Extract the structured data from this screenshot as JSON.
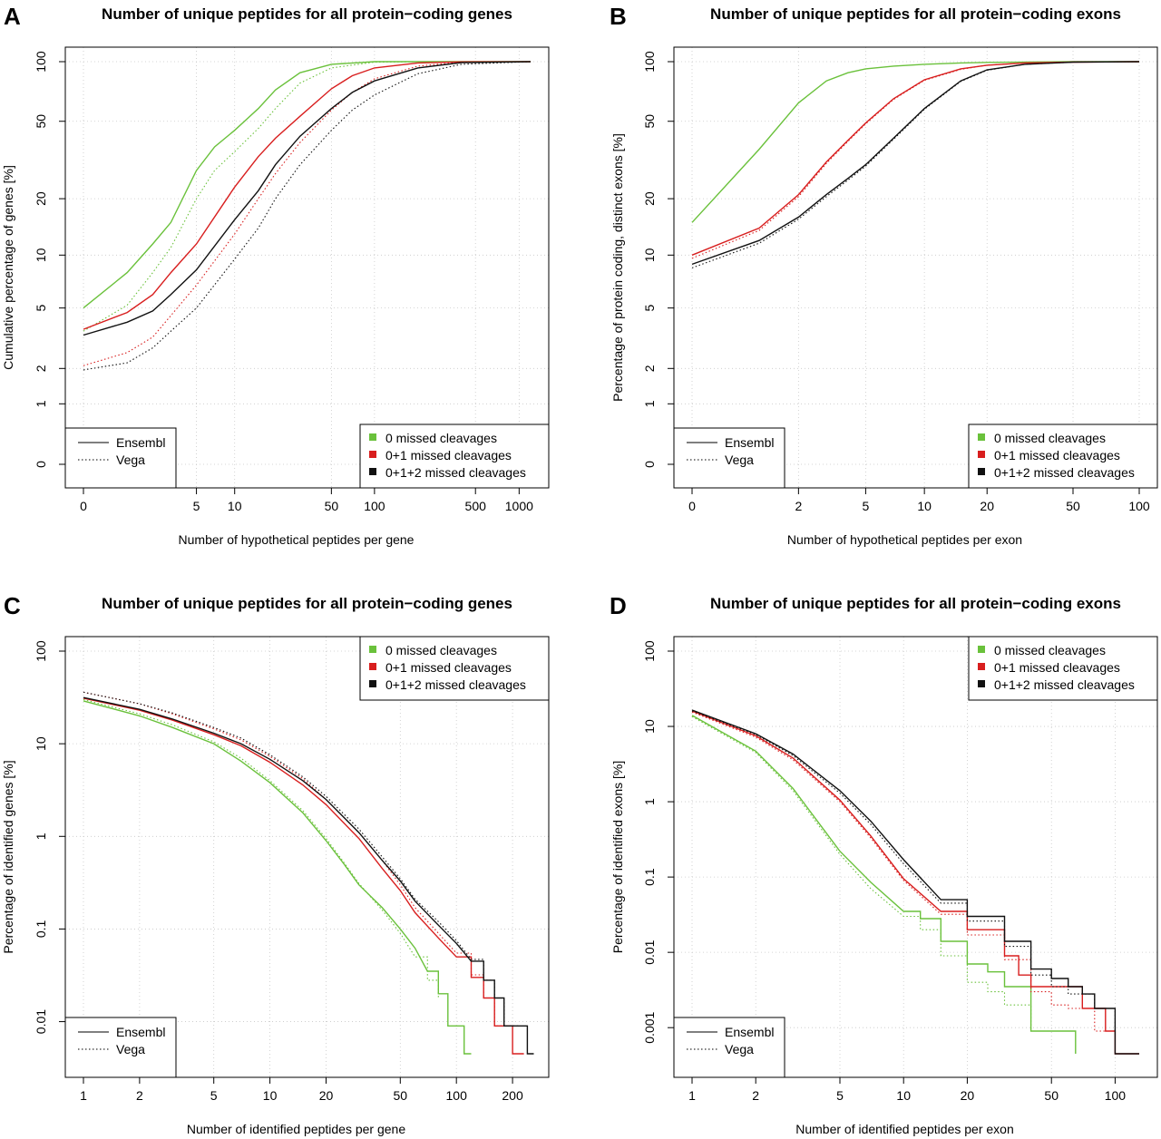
{
  "colors": {
    "green": "#6ac13b",
    "red": "#d81e1e",
    "black": "#111111",
    "grid": "#c8c8c8"
  },
  "legend_labels": {
    "source": [
      "Ensembl",
      "Vega"
    ],
    "cleavage": [
      "0 missed cleavages",
      "0+1 missed cleavages",
      "0+1+2 missed cleavages"
    ]
  },
  "chart_data": [
    {
      "letter": "A",
      "type": "line",
      "title": "Number of unique peptides for all protein−coding genes",
      "xlabel": "Number of hypothetical peptides per gene",
      "ylabel": "Cumulative percentage of genes [%]",
      "x_scale": "log(x+1)",
      "y_scale": "log(y+1)",
      "xlim": [
        0,
        1200
      ],
      "ylim": [
        0,
        100
      ],
      "x_ticks": [
        0,
        5,
        10,
        50,
        100,
        500,
        1000
      ],
      "y_ticks": [
        0,
        1,
        2,
        5,
        10,
        20,
        50,
        100
      ],
      "grid": true,
      "legends": {
        "source": "bottom-left",
        "cleavage": "bottom-right"
      },
      "series": [
        {
          "name": "Ensembl",
          "cleavage": "0 missed cleavages",
          "color": "green",
          "style": "solid",
          "x": [
            0,
            1,
            2,
            3,
            5,
            7,
            10,
            15,
            20,
            30,
            50,
            100,
            200,
            1200
          ],
          "y": [
            5,
            8,
            11.5,
            15,
            28,
            37,
            45,
            58,
            72,
            88,
            97,
            100,
            100,
            100
          ]
        },
        {
          "name": "Vega",
          "cleavage": "0 missed cleavages",
          "color": "green",
          "style": "dotted",
          "x": [
            0,
            1,
            2,
            3,
            5,
            7,
            10,
            15,
            20,
            30,
            50,
            100,
            200,
            1200
          ],
          "y": [
            3.6,
            5.2,
            8,
            11,
            20,
            28,
            35,
            46,
            58,
            78,
            93,
            99.5,
            100,
            100
          ]
        },
        {
          "name": "Ensembl",
          "cleavage": "0+1 missed cleavages",
          "color": "red",
          "style": "solid",
          "x": [
            0,
            1,
            2,
            3,
            5,
            10,
            15,
            20,
            30,
            50,
            70,
            100,
            200,
            400,
            1200
          ],
          "y": [
            3.7,
            4.7,
            6,
            8,
            11.5,
            23,
            33,
            41,
            53,
            73,
            85,
            93,
            98.5,
            99.8,
            100
          ]
        },
        {
          "name": "Vega",
          "cleavage": "0+1 missed cleavages",
          "color": "red",
          "style": "dotted",
          "x": [
            0,
            1,
            2,
            3,
            5,
            10,
            15,
            20,
            30,
            50,
            70,
            100,
            200,
            400,
            1200
          ],
          "y": [
            2.1,
            2.6,
            3.3,
            4.5,
            6.8,
            13,
            20,
            27,
            39,
            57,
            70,
            82,
            95,
            99.5,
            100
          ]
        },
        {
          "name": "Ensembl",
          "cleavage": "0+1+2 missed cleavages",
          "color": "black",
          "style": "solid",
          "x": [
            0,
            1,
            2,
            3,
            5,
            10,
            15,
            20,
            30,
            50,
            70,
            100,
            200,
            400,
            1200
          ],
          "y": [
            3.4,
            4.1,
            4.8,
            6,
            8.3,
            15.5,
            22,
            30,
            42,
            58,
            70,
            80,
            93,
            99,
            100
          ]
        },
        {
          "name": "Vega",
          "cleavage": "0+1+2 missed cleavages",
          "color": "black",
          "style": "dotted",
          "x": [
            0,
            1,
            2,
            3,
            5,
            10,
            15,
            20,
            30,
            50,
            70,
            100,
            200,
            400,
            1200
          ],
          "y": [
            1.95,
            2.2,
            2.8,
            3.6,
            5,
            9.5,
            14,
            20,
            30,
            45,
            57,
            68,
            87,
            97,
            100
          ]
        }
      ]
    },
    {
      "letter": "B",
      "type": "line",
      "title": "Number of unique peptides for all protein−coding exons",
      "xlabel": "Number of hypothetical peptides per exon",
      "ylabel": "Percentage of protein coding, distinct exons [%]",
      "x_scale": "log(x+1)",
      "y_scale": "log(y+1)",
      "xlim": [
        0,
        100
      ],
      "ylim": [
        0,
        100
      ],
      "x_ticks": [
        0,
        2,
        5,
        10,
        20,
        50,
        100
      ],
      "y_ticks": [
        0,
        1,
        2,
        5,
        10,
        20,
        50,
        100
      ],
      "grid": true,
      "legends": {
        "source": "bottom-left",
        "cleavage": "bottom-right"
      },
      "series": [
        {
          "name": "Ensembl",
          "cleavage": "0 missed cleavages",
          "color": "green",
          "style": "solid",
          "x": [
            0,
            1,
            2,
            3,
            4,
            5,
            7,
            10,
            15,
            20,
            50,
            100
          ],
          "y": [
            15,
            36,
            62,
            80,
            88,
            92,
            95,
            97,
            98.5,
            99.2,
            100,
            100
          ]
        },
        {
          "name": "Ensembl",
          "cleavage": "0+1 missed cleavages",
          "color": "red",
          "style": "solid",
          "x": [
            0,
            1,
            2,
            3,
            4,
            5,
            7,
            10,
            15,
            20,
            30,
            50,
            100
          ],
          "y": [
            10,
            14,
            21,
            31,
            40,
            49,
            65,
            81,
            92,
            96,
            98.5,
            99.5,
            100
          ]
        },
        {
          "name": "Vega",
          "cleavage": "0+1 missed cleavages",
          "color": "red",
          "style": "dotted",
          "x": [
            0,
            1,
            2,
            3,
            4,
            5,
            7,
            10,
            15,
            20,
            30,
            50,
            100
          ],
          "y": [
            9.6,
            13.6,
            20.5,
            30.5,
            39.5,
            48.5,
            64.5,
            80.5,
            91.5,
            96,
            98.5,
            99.5,
            100
          ]
        },
        {
          "name": "Ensembl",
          "cleavage": "0+1+2 missed cleavages",
          "color": "black",
          "style": "solid",
          "x": [
            0,
            1,
            2,
            3,
            4,
            5,
            7,
            10,
            15,
            20,
            30,
            50,
            100
          ],
          "y": [
            8.9,
            12,
            16,
            21,
            25.5,
            30,
            41,
            58,
            80,
            91,
            97,
            99.5,
            100
          ]
        },
        {
          "name": "Vega",
          "cleavage": "0+1+2 missed cleavages",
          "color": "black",
          "style": "dotted",
          "x": [
            0,
            1,
            2,
            3,
            4,
            5,
            7,
            10,
            15,
            20,
            30,
            50,
            100
          ],
          "y": [
            8.5,
            11.6,
            15.6,
            20.5,
            25,
            29.5,
            40.5,
            57.5,
            79.5,
            90.5,
            97,
            99.5,
            100
          ]
        }
      ]
    },
    {
      "letter": "C",
      "type": "line",
      "title": "Number of unique peptides for all protein−coding genes",
      "xlabel": "Number of identified peptides per gene",
      "ylabel": "Percentage of identified genes [%]",
      "x_scale": "log",
      "y_scale": "log",
      "xlim": [
        1,
        250
      ],
      "ylim": [
        0.0045,
        100
      ],
      "x_ticks": [
        1,
        2,
        5,
        10,
        20,
        50,
        100,
        200
      ],
      "y_ticks": [
        0.01,
        0.1,
        1,
        10,
        100
      ],
      "grid": true,
      "legends": {
        "source": "bottom-left",
        "cleavage": "top-right"
      },
      "series": [
        {
          "name": "Ensembl",
          "cleavage": "0 missed cleavages",
          "color": "green",
          "style": "solid",
          "x": [
            1,
            2,
            3,
            5,
            7,
            10,
            15,
            20,
            25,
            30,
            40,
            50,
            60,
            70,
            80,
            90,
            100,
            110,
            120
          ],
          "y": [
            29,
            20,
            15,
            10,
            6.5,
            3.8,
            1.8,
            0.9,
            0.5,
            0.3,
            0.17,
            0.1,
            0.062,
            0.035,
            0.02,
            0.009,
            0.009,
            0.0045,
            0.0045
          ]
        },
        {
          "name": "Vega",
          "cleavage": "0 missed cleavages",
          "color": "green",
          "style": "dotted",
          "x": [
            1,
            2,
            3,
            5,
            7,
            10,
            15,
            20,
            25,
            30,
            40,
            50,
            60,
            70,
            80
          ],
          "y": [
            30,
            21,
            16,
            10.5,
            7,
            4,
            1.9,
            0.95,
            0.52,
            0.31,
            0.16,
            0.09,
            0.05,
            0.028,
            0.018
          ]
        },
        {
          "name": "Ensembl",
          "cleavage": "0+1 missed cleavages",
          "color": "red",
          "style": "solid",
          "x": [
            1,
            2,
            3,
            5,
            7,
            10,
            15,
            20,
            30,
            40,
            50,
            60,
            80,
            100,
            120,
            140,
            160,
            180,
            200,
            230
          ],
          "y": [
            31,
            23,
            18,
            12.5,
            9.5,
            6.3,
            3.6,
            2.2,
            0.95,
            0.45,
            0.26,
            0.15,
            0.08,
            0.05,
            0.03,
            0.018,
            0.009,
            0.009,
            0.0045,
            0.0045
          ]
        },
        {
          "name": "Vega",
          "cleavage": "0+1 missed cleavages",
          "color": "red",
          "style": "dotted",
          "x": [
            1,
            2,
            3,
            5,
            7,
            10,
            15,
            20,
            30,
            40,
            50,
            60,
            80,
            100,
            120,
            140,
            160,
            180,
            200
          ],
          "y": [
            36,
            27,
            21,
            14.5,
            11,
            7.3,
            4.2,
            2.5,
            1.1,
            0.55,
            0.3,
            0.17,
            0.09,
            0.055,
            0.032,
            0.018,
            0.009,
            0.009,
            0.009
          ]
        },
        {
          "name": "Ensembl",
          "cleavage": "0+1+2 missed cleavages",
          "color": "black",
          "style": "solid",
          "x": [
            1,
            2,
            3,
            5,
            7,
            10,
            15,
            20,
            30,
            40,
            50,
            60,
            80,
            100,
            120,
            140,
            160,
            180,
            200,
            240,
            260
          ],
          "y": [
            31.5,
            23.5,
            18.5,
            13,
            10,
            6.8,
            4,
            2.5,
            1.1,
            0.55,
            0.33,
            0.2,
            0.11,
            0.07,
            0.045,
            0.028,
            0.018,
            0.009,
            0.009,
            0.0045,
            0.0045
          ]
        },
        {
          "name": "Vega",
          "cleavage": "0+1+2 missed cleavages",
          "color": "black",
          "style": "dotted",
          "x": [
            1,
            2,
            3,
            5,
            7,
            10,
            15,
            20,
            30,
            40,
            50,
            60,
            80,
            100,
            120,
            140,
            160,
            180,
            200,
            220
          ],
          "y": [
            36,
            27,
            21.5,
            15,
            11.5,
            7.6,
            4.4,
            2.7,
            1.2,
            0.6,
            0.35,
            0.21,
            0.12,
            0.075,
            0.047,
            0.028,
            0.018,
            0.009,
            0.009,
            0.009
          ]
        }
      ]
    },
    {
      "letter": "D",
      "type": "line",
      "title": "Number of unique peptides for all protein−coding exons",
      "xlabel": "Number of identified peptides per exon",
      "ylabel": "Percentage of identified exons [%]",
      "x_scale": "log",
      "y_scale": "log",
      "xlim": [
        1,
        130
      ],
      "ylim": [
        0.00045,
        100
      ],
      "x_ticks": [
        1,
        2,
        5,
        10,
        20,
        50,
        100
      ],
      "y_ticks": [
        0.001,
        0.01,
        0.1,
        1,
        10,
        100
      ],
      "grid": true,
      "legends": {
        "source": "bottom-left",
        "cleavage": "top-right"
      },
      "series": [
        {
          "name": "Ensembl",
          "cleavage": "0 missed cleavages",
          "color": "green",
          "style": "solid",
          "x": [
            1,
            2,
            3,
            5,
            7,
            10,
            12,
            15,
            20,
            25,
            30,
            40,
            50,
            60,
            65
          ],
          "y": [
            14,
            4.7,
            1.5,
            0.22,
            0.085,
            0.035,
            0.028,
            0.014,
            0.007,
            0.0055,
            0.0035,
            0.0009,
            0.0009,
            0.0009,
            0.00045
          ]
        },
        {
          "name": "Vega",
          "cleavage": "0 missed cleavages",
          "color": "green",
          "style": "dotted",
          "x": [
            1,
            2,
            3,
            5,
            7,
            10,
            12,
            15,
            20,
            25,
            30,
            40,
            50
          ],
          "y": [
            13.5,
            4.5,
            1.4,
            0.2,
            0.07,
            0.03,
            0.02,
            0.009,
            0.004,
            0.003,
            0.002,
            0.0009,
            0.0009
          ]
        },
        {
          "name": "Ensembl",
          "cleavage": "0+1 missed cleavages",
          "color": "red",
          "style": "solid",
          "x": [
            1,
            2,
            3,
            5,
            7,
            10,
            15,
            20,
            30,
            35,
            40,
            50,
            60,
            70,
            80,
            90,
            100,
            130
          ],
          "y": [
            16,
            7.5,
            3.8,
            1.05,
            0.35,
            0.095,
            0.035,
            0.02,
            0.009,
            0.005,
            0.0035,
            0.0035,
            0.0035,
            0.0018,
            0.0018,
            0.0009,
            0.00045,
            0.00045
          ]
        },
        {
          "name": "Vega",
          "cleavage": "0+1 missed cleavages",
          "color": "red",
          "style": "dotted",
          "x": [
            1,
            2,
            3,
            5,
            7,
            10,
            15,
            20,
            30,
            40,
            50,
            60,
            80,
            100
          ],
          "y": [
            15.5,
            7.2,
            3.6,
            1.0,
            0.33,
            0.09,
            0.032,
            0.017,
            0.008,
            0.003,
            0.002,
            0.0018,
            0.0009,
            0.0009
          ]
        },
        {
          "name": "Ensembl",
          "cleavage": "0+1+2 missed cleavages",
          "color": "black",
          "style": "solid",
          "x": [
            1,
            2,
            3,
            5,
            7,
            10,
            15,
            20,
            30,
            40,
            50,
            60,
            70,
            80,
            100,
            130
          ],
          "y": [
            16.5,
            8,
            4.3,
            1.4,
            0.55,
            0.17,
            0.05,
            0.03,
            0.014,
            0.006,
            0.0045,
            0.0035,
            0.0028,
            0.0018,
            0.00045,
            0.00045
          ]
        },
        {
          "name": "Vega",
          "cleavage": "0+1+2 missed cleavages",
          "color": "black",
          "style": "dotted",
          "x": [
            1,
            2,
            3,
            5,
            7,
            10,
            15,
            20,
            30,
            40,
            50,
            60,
            80,
            100
          ],
          "y": [
            16,
            7.8,
            4.1,
            1.3,
            0.5,
            0.15,
            0.045,
            0.026,
            0.012,
            0.005,
            0.0035,
            0.0028,
            0.0018,
            0.0009
          ]
        }
      ]
    }
  ]
}
